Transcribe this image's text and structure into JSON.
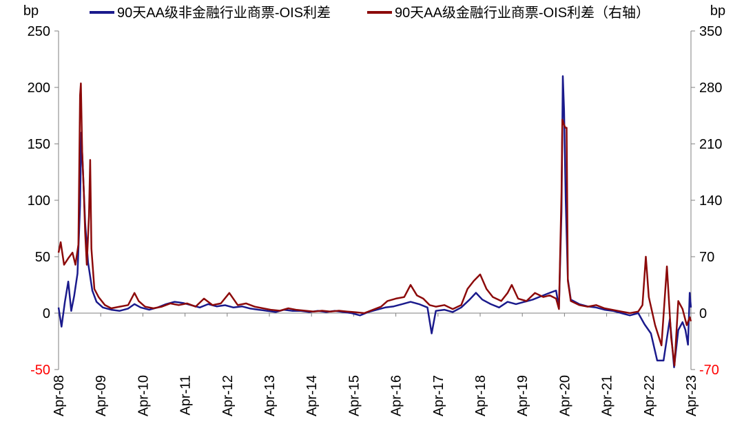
{
  "chart_data": {
    "type": "line",
    "left_axis_unit": "bp",
    "right_axis_unit": "bp",
    "ylim_left": [
      -50,
      250
    ],
    "ylim_right": [
      -70,
      350
    ],
    "yticks_left": [
      "-50",
      "0",
      "50",
      "100",
      "150",
      "200",
      "250"
    ],
    "yticks_right": [
      "-70",
      "0",
      "70",
      "140",
      "210",
      "280",
      "350"
    ],
    "negative_tick_color": "#ff0000",
    "x_ticks": [
      "Apr-08",
      "Apr-09",
      "Apr-10",
      "Apr-11",
      "Apr-12",
      "Apr-13",
      "Apr-14",
      "Apr-15",
      "Apr-16",
      "Apr-17",
      "Apr-18",
      "Apr-19",
      "Apr-20",
      "Apr-21",
      "Apr-22",
      "Apr-23"
    ],
    "xlim": [
      2008.25,
      2023.25
    ],
    "legend_position": "top",
    "series": [
      {
        "name": "90天AA级非金融行业商票-OIS利差",
        "axis": "left",
        "color": "#1a1a8c",
        "points": [
          [
            2008.25,
            5
          ],
          [
            2008.32,
            -12
          ],
          [
            2008.4,
            10
          ],
          [
            2008.48,
            28
          ],
          [
            2008.55,
            2
          ],
          [
            2008.62,
            15
          ],
          [
            2008.7,
            35
          ],
          [
            2008.76,
            95
          ],
          [
            2008.79,
            160
          ],
          [
            2008.83,
            125
          ],
          [
            2008.88,
            80
          ],
          [
            2008.95,
            45
          ],
          [
            2009.05,
            20
          ],
          [
            2009.15,
            10
          ],
          [
            2009.3,
            5
          ],
          [
            2009.5,
            3
          ],
          [
            2009.7,
            2
          ],
          [
            2009.9,
            4
          ],
          [
            2010.05,
            8
          ],
          [
            2010.2,
            5
          ],
          [
            2010.4,
            3
          ],
          [
            2010.6,
            5
          ],
          [
            2010.8,
            8
          ],
          [
            2011.0,
            10
          ],
          [
            2011.2,
            9
          ],
          [
            2011.4,
            7
          ],
          [
            2011.6,
            5
          ],
          [
            2011.8,
            8
          ],
          [
            2012.0,
            6
          ],
          [
            2012.2,
            7
          ],
          [
            2012.4,
            5
          ],
          [
            2012.6,
            6
          ],
          [
            2012.8,
            4
          ],
          [
            2013.0,
            3
          ],
          [
            2013.2,
            2
          ],
          [
            2013.4,
            1
          ],
          [
            2013.6,
            3
          ],
          [
            2013.8,
            2
          ],
          [
            2014.0,
            2
          ],
          [
            2014.2,
            1
          ],
          [
            2014.4,
            2
          ],
          [
            2014.6,
            1
          ],
          [
            2014.8,
            2
          ],
          [
            2015.0,
            1
          ],
          [
            2015.2,
            0
          ],
          [
            2015.4,
            -2
          ],
          [
            2015.6,
            1
          ],
          [
            2015.8,
            3
          ],
          [
            2016.0,
            5
          ],
          [
            2016.2,
            6
          ],
          [
            2016.4,
            8
          ],
          [
            2016.6,
            10
          ],
          [
            2016.8,
            8
          ],
          [
            2017.0,
            5
          ],
          [
            2017.1,
            -18
          ],
          [
            2017.2,
            2
          ],
          [
            2017.4,
            3
          ],
          [
            2017.6,
            1
          ],
          [
            2017.8,
            5
          ],
          [
            2018.0,
            12
          ],
          [
            2018.15,
            18
          ],
          [
            2018.3,
            12
          ],
          [
            2018.5,
            8
          ],
          [
            2018.7,
            5
          ],
          [
            2018.9,
            10
          ],
          [
            2019.1,
            8
          ],
          [
            2019.3,
            10
          ],
          [
            2019.5,
            12
          ],
          [
            2019.7,
            15
          ],
          [
            2019.9,
            18
          ],
          [
            2020.05,
            20
          ],
          [
            2020.12,
            5
          ],
          [
            2020.18,
            90
          ],
          [
            2020.21,
            210
          ],
          [
            2020.24,
            180
          ],
          [
            2020.28,
            100
          ],
          [
            2020.33,
            30
          ],
          [
            2020.4,
            12
          ],
          [
            2020.6,
            8
          ],
          [
            2020.8,
            6
          ],
          [
            2021.0,
            5
          ],
          [
            2021.2,
            3
          ],
          [
            2021.4,
            2
          ],
          [
            2021.6,
            0
          ],
          [
            2021.8,
            -2
          ],
          [
            2022.0,
            0
          ],
          [
            2022.15,
            -10
          ],
          [
            2022.3,
            -18
          ],
          [
            2022.45,
            -42
          ],
          [
            2022.6,
            -42
          ],
          [
            2022.75,
            -5
          ],
          [
            2022.85,
            -48
          ],
          [
            2022.95,
            -15
          ],
          [
            2023.05,
            -8
          ],
          [
            2023.12,
            -15
          ],
          [
            2023.18,
            -28
          ],
          [
            2023.22,
            18
          ],
          [
            2023.25,
            5
          ]
        ]
      },
      {
        "name": "90天AA级金融行业商票-OIS利差（右轴）",
        "axis": "right",
        "color": "#8c0a0a",
        "points": [
          [
            2008.25,
            75
          ],
          [
            2008.3,
            88
          ],
          [
            2008.38,
            60
          ],
          [
            2008.48,
            68
          ],
          [
            2008.58,
            75
          ],
          [
            2008.65,
            60
          ],
          [
            2008.72,
            85
          ],
          [
            2008.76,
            270
          ],
          [
            2008.78,
            285
          ],
          [
            2008.81,
            200
          ],
          [
            2008.85,
            150
          ],
          [
            2008.88,
            100
          ],
          [
            2008.92,
            60
          ],
          [
            2008.97,
            120
          ],
          [
            2009.0,
            190
          ],
          [
            2009.03,
            80
          ],
          [
            2009.1,
            30
          ],
          [
            2009.2,
            20
          ],
          [
            2009.35,
            10
          ],
          [
            2009.5,
            6
          ],
          [
            2009.7,
            8
          ],
          [
            2009.9,
            10
          ],
          [
            2010.05,
            25
          ],
          [
            2010.15,
            15
          ],
          [
            2010.3,
            8
          ],
          [
            2010.5,
            6
          ],
          [
            2010.7,
            8
          ],
          [
            2010.9,
            12
          ],
          [
            2011.1,
            10
          ],
          [
            2011.3,
            12
          ],
          [
            2011.5,
            8
          ],
          [
            2011.7,
            18
          ],
          [
            2011.9,
            10
          ],
          [
            2012.1,
            12
          ],
          [
            2012.3,
            25
          ],
          [
            2012.5,
            10
          ],
          [
            2012.7,
            12
          ],
          [
            2012.9,
            8
          ],
          [
            2013.1,
            6
          ],
          [
            2013.3,
            4
          ],
          [
            2013.5,
            3
          ],
          [
            2013.7,
            6
          ],
          [
            2013.9,
            4
          ],
          [
            2014.1,
            3
          ],
          [
            2014.3,
            2
          ],
          [
            2014.5,
            3
          ],
          [
            2014.7,
            2
          ],
          [
            2014.9,
            3
          ],
          [
            2015.1,
            2
          ],
          [
            2015.3,
            1
          ],
          [
            2015.5,
            0
          ],
          [
            2015.7,
            4
          ],
          [
            2015.9,
            8
          ],
          [
            2016.05,
            15
          ],
          [
            2016.25,
            18
          ],
          [
            2016.45,
            20
          ],
          [
            2016.6,
            35
          ],
          [
            2016.75,
            22
          ],
          [
            2016.9,
            18
          ],
          [
            2017.05,
            10
          ],
          [
            2017.2,
            8
          ],
          [
            2017.4,
            10
          ],
          [
            2017.6,
            5
          ],
          [
            2017.8,
            10
          ],
          [
            2017.95,
            30
          ],
          [
            2018.1,
            40
          ],
          [
            2018.25,
            48
          ],
          [
            2018.4,
            30
          ],
          [
            2018.55,
            20
          ],
          [
            2018.75,
            15
          ],
          [
            2018.9,
            25
          ],
          [
            2019.0,
            35
          ],
          [
            2019.15,
            18
          ],
          [
            2019.35,
            15
          ],
          [
            2019.55,
            25
          ],
          [
            2019.75,
            20
          ],
          [
            2019.9,
            22
          ],
          [
            2020.05,
            18
          ],
          [
            2020.12,
            5
          ],
          [
            2020.18,
            150
          ],
          [
            2020.2,
            240
          ],
          [
            2020.23,
            235
          ],
          [
            2020.27,
            230
          ],
          [
            2020.3,
            230
          ],
          [
            2020.33,
            40
          ],
          [
            2020.4,
            15
          ],
          [
            2020.6,
            10
          ],
          [
            2020.8,
            8
          ],
          [
            2021.0,
            10
          ],
          [
            2021.2,
            6
          ],
          [
            2021.4,
            4
          ],
          [
            2021.6,
            2
          ],
          [
            2021.8,
            0
          ],
          [
            2022.0,
            2
          ],
          [
            2022.1,
            10
          ],
          [
            2022.18,
            70
          ],
          [
            2022.25,
            20
          ],
          [
            2022.4,
            -15
          ],
          [
            2022.55,
            -40
          ],
          [
            2022.68,
            58
          ],
          [
            2022.78,
            -30
          ],
          [
            2022.86,
            -65
          ],
          [
            2022.95,
            15
          ],
          [
            2023.05,
            5
          ],
          [
            2023.15,
            -15
          ],
          [
            2023.22,
            -5
          ],
          [
            2023.25,
            -10
          ]
        ]
      }
    ]
  }
}
